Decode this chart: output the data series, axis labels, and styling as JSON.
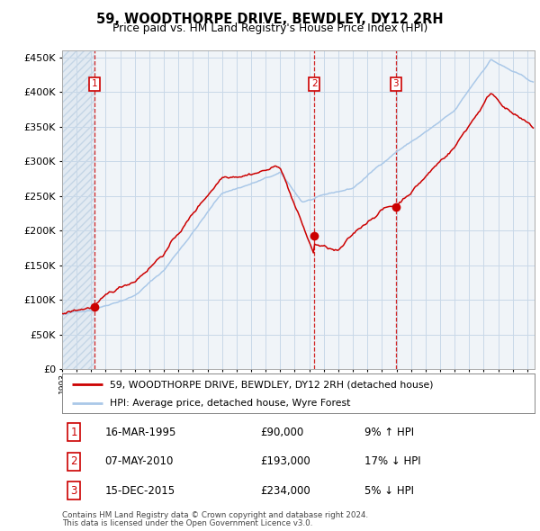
{
  "title": "59, WOODTHORPE DRIVE, BEWDLEY, DY12 2RH",
  "subtitle": "Price paid vs. HM Land Registry's House Price Index (HPI)",
  "legend_property": "59, WOODTHORPE DRIVE, BEWDLEY, DY12 2RH (detached house)",
  "legend_hpi": "HPI: Average price, detached house, Wyre Forest",
  "footer1": "Contains HM Land Registry data © Crown copyright and database right 2024.",
  "footer2": "This data is licensed under the Open Government Licence v3.0.",
  "transactions": [
    {
      "num": 1,
      "date": "16-MAR-1995",
      "price": 90000,
      "hpi_pct": "9% ↑ HPI",
      "x_year": 1995.21
    },
    {
      "num": 2,
      "date": "07-MAY-2010",
      "price": 193000,
      "hpi_pct": "17% ↓ HPI",
      "x_year": 2010.35
    },
    {
      "num": 3,
      "date": "15-DEC-2015",
      "price": 234000,
      "hpi_pct": "5% ↓ HPI",
      "x_year": 2015.96
    }
  ],
  "ylim": [
    0,
    460000
  ],
  "xlim_start": 1993.0,
  "xlim_end": 2025.5,
  "yticks": [
    0,
    50000,
    100000,
    150000,
    200000,
    250000,
    300000,
    350000,
    400000,
    450000
  ],
  "ytick_labels": [
    "£0",
    "£50K",
    "£100K",
    "£150K",
    "£200K",
    "£250K",
    "£300K",
    "£350K",
    "£400K",
    "£450K"
  ],
  "xtick_years": [
    1993,
    1994,
    1995,
    1996,
    1997,
    1998,
    1999,
    2000,
    2001,
    2002,
    2003,
    2004,
    2005,
    2006,
    2007,
    2008,
    2009,
    2010,
    2011,
    2012,
    2013,
    2014,
    2015,
    2016,
    2017,
    2018,
    2019,
    2020,
    2021,
    2022,
    2023,
    2024,
    2025
  ],
  "property_color": "#cc0000",
  "hpi_color": "#aac8e8",
  "vline_color": "#cc0000",
  "marker_color": "#cc0000",
  "box_color": "#cc0000",
  "grid_color": "#c8d8e8",
  "hatch_color": "#c8d8e8",
  "bg_color": "#ffffff",
  "plot_bg": "#f0f4f8",
  "row_labels": [
    "1",
    "2",
    "3"
  ],
  "row_dates": [
    "16-MAR-1995",
    "07-MAY-2010",
    "15-DEC-2015"
  ],
  "row_prices": [
    "£90,000",
    "£193,000",
    "£234,000"
  ],
  "row_hpi": [
    "9% ↑ HPI",
    "17% ↓ HPI",
    "5% ↓ HPI"
  ]
}
